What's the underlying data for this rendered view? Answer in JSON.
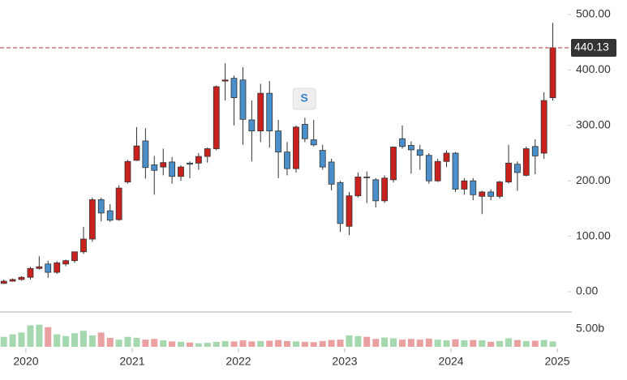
{
  "chart_data": {
    "type": "candlestick",
    "x": [
      2019.792,
      2019.875,
      2019.958,
      2020.042,
      2020.125,
      2020.208,
      2020.292,
      2020.375,
      2020.458,
      2020.542,
      2020.625,
      2020.708,
      2020.792,
      2020.875,
      2020.958,
      2021.042,
      2021.125,
      2021.208,
      2021.292,
      2021.375,
      2021.458,
      2021.542,
      2021.625,
      2021.708,
      2021.792,
      2021.875,
      2021.958,
      2022.042,
      2022.125,
      2022.208,
      2022.292,
      2022.375,
      2022.458,
      2022.542,
      2022.625,
      2022.708,
      2022.792,
      2022.875,
      2022.958,
      2023.042,
      2023.125,
      2023.208,
      2023.292,
      2023.375,
      2023.458,
      2023.542,
      2023.625,
      2023.708,
      2023.792,
      2023.875,
      2023.958,
      2024.042,
      2024.125,
      2024.208,
      2024.292,
      2024.375,
      2024.458,
      2024.542,
      2024.625,
      2024.708,
      2024.792,
      2024.875,
      2024.958
    ],
    "open": [
      15,
      19,
      22,
      26,
      42,
      50,
      35,
      50,
      56,
      72,
      95,
      166,
      146,
      130,
      198,
      237,
      272,
      229,
      225,
      234,
      208,
      232,
      232,
      244,
      258,
      380,
      385,
      382,
      310,
      290,
      358,
      290,
      252,
      222,
      302,
      274,
      255,
      234,
      197,
      118,
      173,
      207,
      202,
      164,
      202,
      276,
      264,
      256,
      246,
      200,
      235,
      250,
      185,
      200,
      172,
      180,
      172,
      198,
      230,
      210,
      262,
      250,
      350
    ],
    "high": [
      22,
      24,
      28,
      45,
      64,
      56,
      55,
      58,
      72,
      117,
      170,
      170,
      158,
      192,
      238,
      297,
      295,
      245,
      258,
      243,
      228,
      235,
      250,
      260,
      372,
      412,
      390,
      405,
      345,
      375,
      380,
      310,
      270,
      300,
      314,
      310,
      265,
      240,
      200,
      180,
      215,
      217,
      205,
      210,
      262,
      300,
      271,
      265,
      250,
      240,
      255,
      252,
      205,
      205,
      182,
      185,
      200,
      265,
      235,
      262,
      275,
      360,
      485
    ],
    "low": [
      14,
      18,
      20,
      22,
      40,
      25,
      32,
      46,
      52,
      68,
      90,
      127,
      126,
      128,
      195,
      236,
      204,
      175,
      210,
      195,
      200,
      205,
      220,
      233,
      255,
      345,
      300,
      265,
      235,
      270,
      260,
      205,
      210,
      215,
      270,
      262,
      220,
      183,
      108,
      102,
      170,
      160,
      152,
      160,
      197,
      258,
      213,
      220,
      195,
      198,
      225,
      180,
      175,
      165,
      140,
      165,
      168,
      195,
      182,
      208,
      212,
      240,
      345
    ],
    "close": [
      19,
      22,
      26,
      42,
      45,
      35,
      52,
      56,
      72,
      95,
      166,
      142,
      129,
      187,
      235,
      263,
      224,
      219,
      233,
      208,
      225,
      230,
      244,
      258,
      370,
      382,
      350,
      311,
      290,
      358,
      290,
      252,
      222,
      297,
      276,
      265,
      225,
      194,
      123,
      173,
      207,
      206,
      164,
      205,
      261,
      262,
      256,
      246,
      200,
      235,
      250,
      185,
      200,
      175,
      180,
      172,
      198,
      232,
      215,
      258,
      245,
      345,
      440.13
    ],
    "volume": [
      2.8,
      3.5,
      4.0,
      6.0,
      6.2,
      5.5,
      3.5,
      3.0,
      3.8,
      4.5,
      3.2,
      4.0,
      2.5,
      2.0,
      2.8,
      2.5,
      2.0,
      2.2,
      1.8,
      1.5,
      1.4,
      1.2,
      1.0,
      1.1,
      1.4,
      1.6,
      1.5,
      1.8,
      1.5,
      1.6,
      1.7,
      1.9,
      1.6,
      1.5,
      1.4,
      1.3,
      1.6,
      1.9,
      2.0,
      3.2,
      3.0,
      2.8,
      2.2,
      2.6,
      2.4,
      2.0,
      2.2,
      2.0,
      2.3,
      2.0,
      1.8,
      2.1,
      1.8,
      1.9,
      1.8,
      1.4,
      1.6,
      2.4,
      1.9,
      1.6,
      1.7,
      1.9,
      1.5
    ],
    "up_color": "#c9211e",
    "down_color": "#4a8fca",
    "volume_up_color": "#a6d8b0",
    "volume_down_color": "#eaa0a0",
    "xlim": [
      2019.756,
      2025.099
    ],
    "xticks": [
      2020,
      2021,
      2022,
      2023,
      2024,
      2025
    ],
    "ylim": [
      -36.5,
      526.3
    ],
    "yticks": [
      {
        "value": 0,
        "label": "0.00"
      },
      {
        "value": 100,
        "label": "100.00"
      },
      {
        "value": 200,
        "label": "200.00"
      },
      {
        "value": 300,
        "label": "300.00"
      },
      {
        "value": 400,
        "label": "400.00"
      },
      {
        "value": 500,
        "label": "500.00"
      }
    ],
    "volume_lim": [
      0,
      9.77
    ],
    "volume_ticks": [
      {
        "value": 5,
        "label": "5.00b"
      }
    ],
    "price_line": 440.13,
    "annotations": [
      {
        "text": "S",
        "x": 2022.62,
        "y": 348
      }
    ],
    "grid": false
  }
}
